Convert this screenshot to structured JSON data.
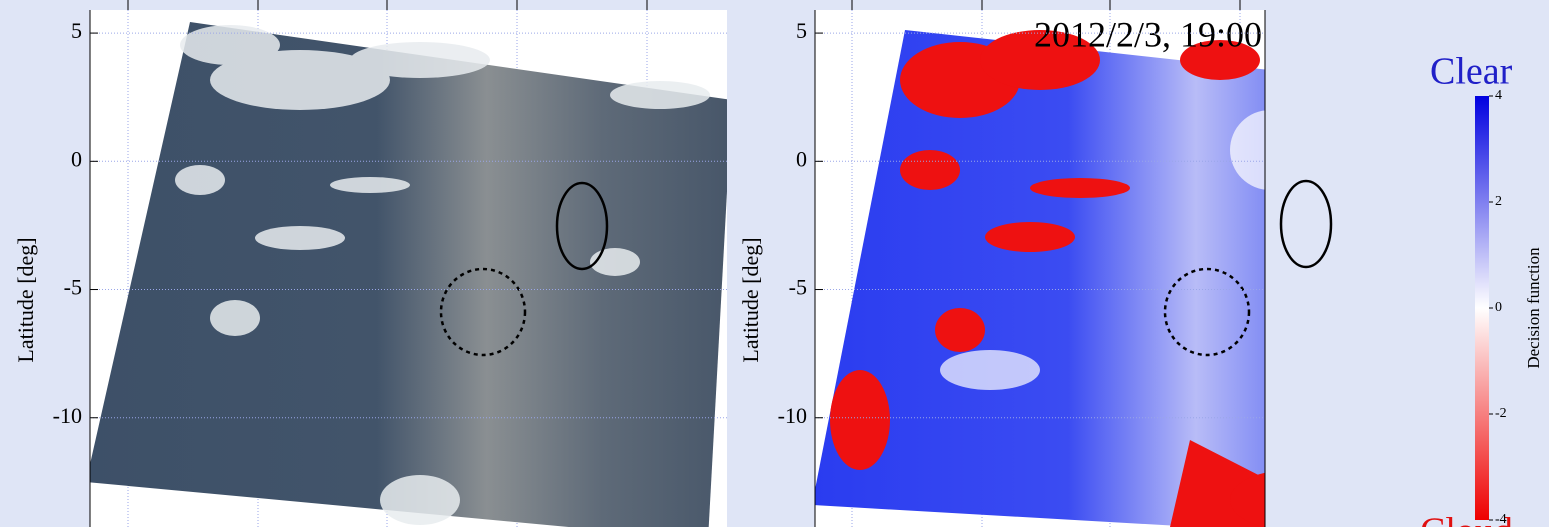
{
  "panels": [
    {
      "ylabel": "Latitude [deg]",
      "ylim": [
        -14.26,
        5.9
      ],
      "yticks": [
        5,
        0,
        -5,
        -10
      ]
    },
    {
      "title": "2012/2/3, 19:00",
      "ylabel": "Latitude [deg]",
      "ylim": [
        -14.26,
        5.9
      ],
      "yticks": [
        5,
        0,
        -5,
        -10
      ]
    }
  ],
  "colorbar": {
    "label": "Decision function",
    "lim": [
      -4,
      4
    ],
    "ticks": [
      4,
      2,
      0,
      -2,
      -4
    ],
    "top_label": "Clear",
    "bottom_label": "Cloud"
  }
}
